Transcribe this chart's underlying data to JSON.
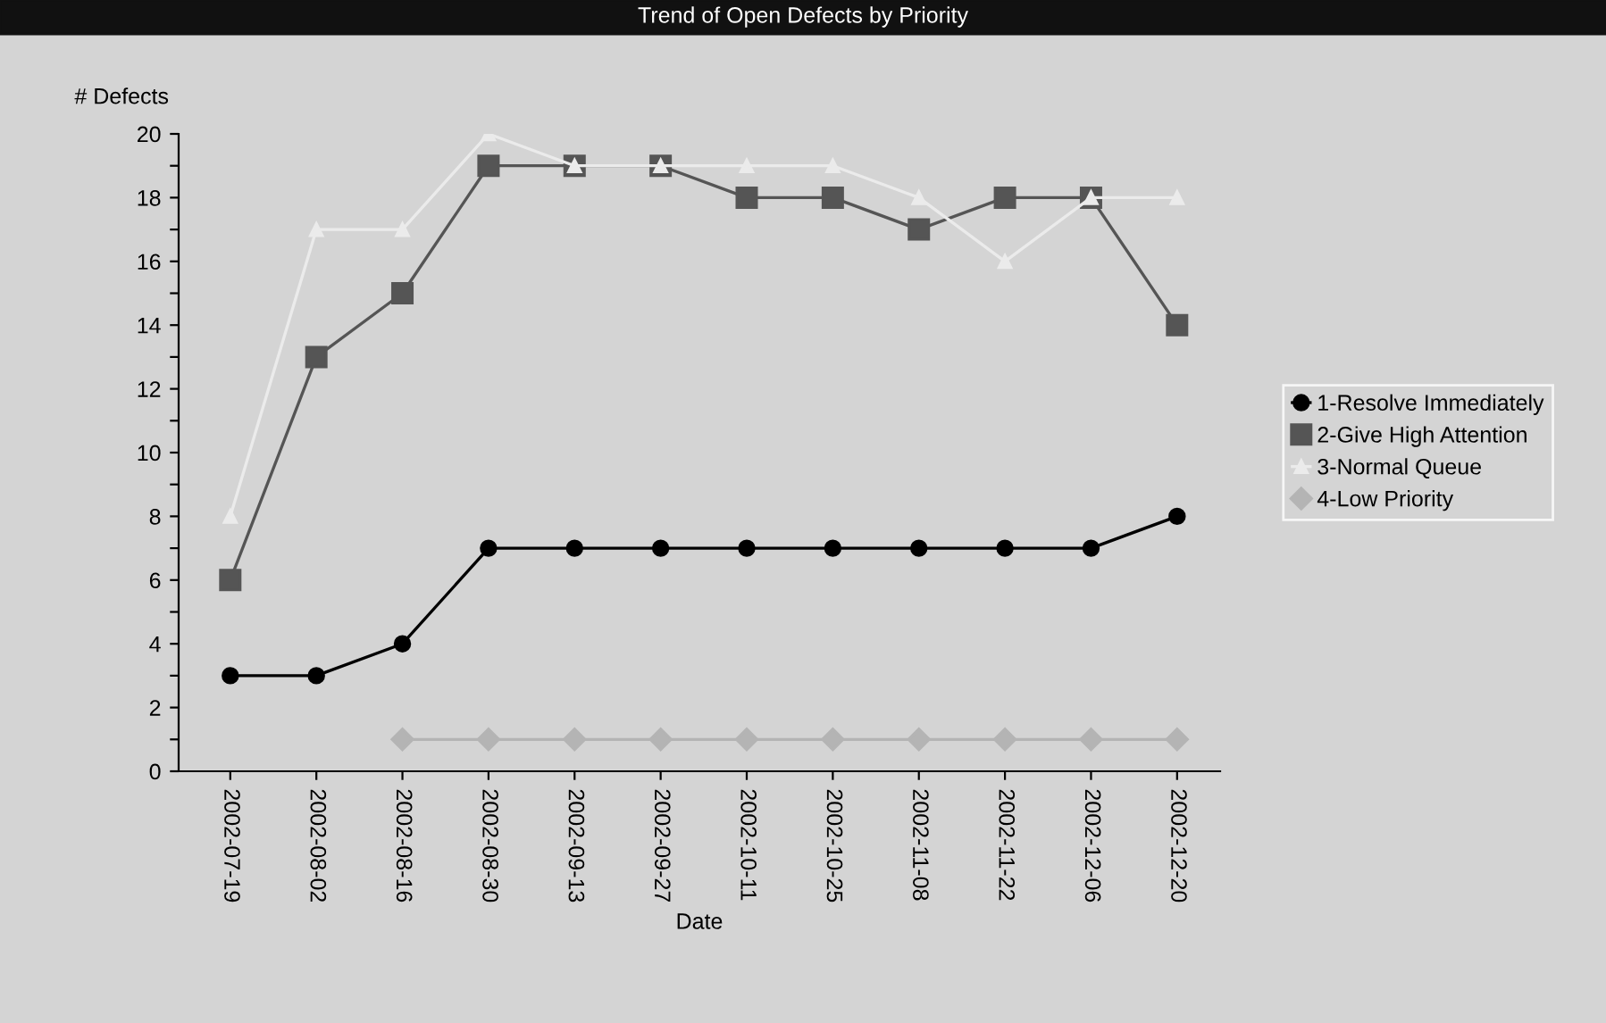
{
  "chart_data": {
    "type": "line",
    "title": "Trend of Open Defects by Priority",
    "xlabel": "Date",
    "ylabel": "# Defects",
    "categories": [
      "2002-07-19",
      "2002-08-02",
      "2002-08-16",
      "2002-08-30",
      "2002-09-13",
      "2002-09-27",
      "2002-10-11",
      "2002-10-25",
      "2002-11-08",
      "2002-11-22",
      "2002-12-06",
      "2002-12-20"
    ],
    "series": [
      {
        "name": "1-Resolve Immediately",
        "color": "#000000",
        "marker": "circle",
        "values": [
          3,
          3,
          4,
          7,
          7,
          7,
          7,
          7,
          7,
          7,
          7,
          8
        ]
      },
      {
        "name": "2-Give High Attention",
        "color": "#555555",
        "marker": "square",
        "values": [
          6,
          13,
          15,
          19,
          19,
          19,
          18,
          18,
          17,
          18,
          18,
          14
        ]
      },
      {
        "name": "3-Normal Queue",
        "color": "#ebebeb",
        "marker": "triangle",
        "values": [
          8,
          17,
          17,
          20,
          19,
          19,
          19,
          19,
          18,
          16,
          18,
          18
        ]
      },
      {
        "name": "4-Low Priority",
        "color": "#b4b4b4",
        "marker": "diamond",
        "values": [
          null,
          null,
          1,
          1,
          1,
          1,
          1,
          1,
          1,
          1,
          1,
          1
        ]
      }
    ],
    "ylim": [
      0,
      20
    ],
    "yticks": [
      0,
      {
        "value": 1,
        "label": null
      },
      2,
      {
        "value": 3,
        "label": null
      },
      4,
      {
        "value": 5,
        "label": null
      },
      6,
      {
        "value": 7,
        "label": null
      },
      8,
      {
        "value": 9,
        "label": null
      },
      10,
      {
        "value": 11,
        "label": null
      },
      12,
      {
        "value": 13,
        "label": null
      },
      14,
      {
        "value": 15,
        "label": null
      },
      16,
      {
        "value": 17,
        "label": null
      },
      18,
      {
        "value": 19,
        "label": null
      },
      20
    ],
    "grid": false,
    "legend": "right",
    "line_style": "solid"
  }
}
